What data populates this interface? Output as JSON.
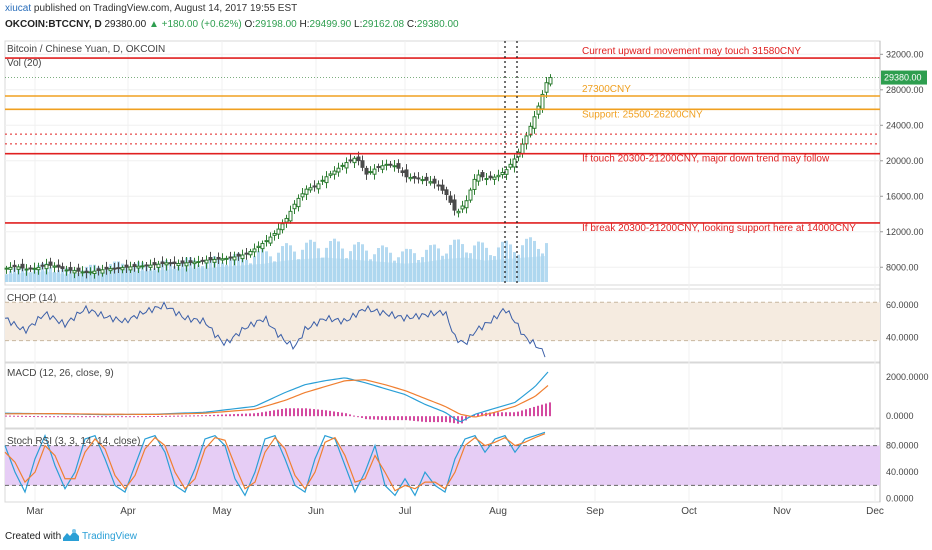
{
  "header": {
    "publisher": "xiucat",
    "published_text": "published on TradingView.com, August 14, 2017 19:55 EST",
    "symbol": "OKCOIN:BTCCNY, D",
    "last": "29380.00",
    "change": "▲ +180.00 (+0.62%)",
    "o_label": "O:",
    "o_value": "29198.00",
    "h_label": "H:",
    "h_value": "29499.90",
    "l_label": "L:",
    "l_value": "29162.08",
    "c_label": "C:",
    "c_value": "29380.00"
  },
  "colors": {
    "red": "#e02020",
    "orange": "#f0a020",
    "up_candle": "#2e7d32",
    "down_candle": "#4a4a4a",
    "volume": "#a8d4ee",
    "chop_line": "#3b5fa8",
    "chop_band": "#f5ebe0",
    "macd_line": "#2a9fd6",
    "signal_line": "#f07f30",
    "hist": "#d44aa0",
    "stoch_band": "#e6cdf5",
    "stoch_k": "#2a9fd6",
    "stoch_d": "#f07f30"
  },
  "footer": {
    "created_text": "Created with",
    "brand": "TradingView"
  },
  "chart_data": [
    {
      "type": "candlestick",
      "title": "Bitcoin / Chinese Yuan, D, OKCOIN",
      "subtitle": "Vol (20)",
      "x_labels": [
        "Mar",
        "Apr",
        "May",
        "Jun",
        "Jul",
        "Aug",
        "Sep",
        "Oct",
        "Nov",
        "Dec"
      ],
      "yticks": [
        8000,
        12000,
        16000,
        20000,
        24000,
        28000,
        32000
      ],
      "yticks_text": [
        "8000.00",
        "12000.00",
        "16000.00",
        "20000.00",
        "24000.00",
        "28000.00",
        "32000.00"
      ],
      "ylim": [
        6000,
        33500
      ],
      "last_price": 29380,
      "last_price_text": "29380.00",
      "close_series": [
        [
          0,
          7900
        ],
        [
          10,
          8100
        ],
        [
          20,
          7800
        ],
        [
          30,
          7900
        ],
        [
          40,
          8300
        ],
        [
          50,
          8100
        ],
        [
          60,
          7700
        ],
        [
          70,
          7600
        ],
        [
          80,
          7400
        ],
        [
          90,
          7600
        ],
        [
          100,
          7800
        ],
        [
          110,
          7900
        ],
        [
          120,
          8000
        ],
        [
          130,
          8100
        ],
        [
          140,
          8200
        ],
        [
          150,
          8300
        ],
        [
          160,
          8500
        ],
        [
          170,
          8400
        ],
        [
          180,
          8500
        ],
        [
          190,
          8600
        ],
        [
          200,
          8800
        ],
        [
          210,
          8900
        ],
        [
          220,
          9000
        ],
        [
          230,
          9200
        ],
        [
          240,
          9500
        ],
        [
          250,
          10200
        ],
        [
          260,
          11000
        ],
        [
          270,
          12000
        ],
        [
          280,
          13500
        ],
        [
          290,
          15500
        ],
        [
          300,
          16800
        ],
        [
          310,
          17200
        ],
        [
          320,
          18200
        ],
        [
          330,
          19000
        ],
        [
          340,
          19800
        ],
        [
          350,
          20400
        ],
        [
          360,
          18500
        ],
        [
          370,
          19200
        ],
        [
          380,
          19600
        ],
        [
          390,
          19400
        ],
        [
          400,
          18200
        ],
        [
          410,
          18000
        ],
        [
          420,
          17800
        ],
        [
          430,
          17400
        ],
        [
          440,
          16200
        ],
        [
          450,
          14000
        ],
        [
          460,
          15500
        ],
        [
          470,
          18500
        ],
        [
          480,
          18000
        ],
        [
          490,
          18200
        ],
        [
          500,
          19000
        ],
        [
          510,
          20500
        ],
        [
          520,
          22800
        ],
        [
          530,
          25500
        ],
        [
          540,
          28800
        ],
        [
          544,
          29380
        ]
      ],
      "volume": [
        [
          0,
          0.5
        ],
        [
          20,
          0.6
        ],
        [
          40,
          0.7
        ],
        [
          60,
          0.5
        ],
        [
          80,
          0.6
        ],
        [
          100,
          0.7
        ],
        [
          120,
          0.8
        ],
        [
          140,
          0.7
        ],
        [
          160,
          0.8
        ],
        [
          180,
          0.9
        ],
        [
          200,
          0.9
        ],
        [
          220,
          1.0
        ],
        [
          240,
          1.1
        ],
        [
          260,
          1.2
        ],
        [
          280,
          1.4
        ],
        [
          300,
          1.5
        ],
        [
          320,
          1.6
        ],
        [
          340,
          1.5
        ],
        [
          360,
          1.4
        ],
        [
          380,
          1.3
        ],
        [
          400,
          1.2
        ],
        [
          420,
          1.3
        ],
        [
          440,
          1.5
        ],
        [
          460,
          1.6
        ],
        [
          480,
          1.4
        ],
        [
          500,
          1.5
        ],
        [
          520,
          1.6
        ],
        [
          540,
          1.7
        ]
      ],
      "levels": [
        {
          "value": 31580,
          "style": "solid",
          "color_key": "red",
          "label": "Current upward movement may touch 31580CNY"
        },
        {
          "value": 27300,
          "style": "solid",
          "color_key": "orange",
          "label": "27300CNY"
        },
        {
          "value": 25800,
          "style": "solid",
          "color_key": "orange",
          "label": "Support: 25500-26200CNY"
        },
        {
          "value": 23000,
          "style": "dotted",
          "color_key": "red",
          "label": ""
        },
        {
          "value": 21900,
          "style": "dotted",
          "color_key": "red",
          "label": ""
        },
        {
          "value": 20800,
          "style": "solid",
          "color_key": "red",
          "label": "If touch 20300-21200CNY, major down trend may follow"
        },
        {
          "value": 13000,
          "style": "solid",
          "color_key": "red",
          "label": "If break 20300-21200CNY, looking support here at 14000CNY"
        }
      ],
      "vertical_markers": [
        500,
        512
      ]
    },
    {
      "type": "line",
      "title": "CHOP (14)",
      "yticks": [
        40,
        60
      ],
      "yticks_text": [
        "40.0000",
        "60.0000"
      ],
      "ylim": [
        25,
        70
      ],
      "band": [
        38.2,
        61.8
      ],
      "values": [
        [
          0,
          52
        ],
        [
          20,
          44
        ],
        [
          40,
          55
        ],
        [
          60,
          48
        ],
        [
          80,
          58
        ],
        [
          100,
          53
        ],
        [
          120,
          50
        ],
        [
          140,
          56
        ],
        [
          160,
          60
        ],
        [
          180,
          52
        ],
        [
          200,
          50
        ],
        [
          210,
          42
        ],
        [
          220,
          36
        ],
        [
          240,
          46
        ],
        [
          260,
          52
        ],
        [
          270,
          44
        ],
        [
          280,
          38
        ],
        [
          290,
          34
        ],
        [
          300,
          45
        ],
        [
          320,
          52
        ],
        [
          340,
          50
        ],
        [
          360,
          58
        ],
        [
          380,
          55
        ],
        [
          400,
          52
        ],
        [
          420,
          54
        ],
        [
          440,
          56
        ],
        [
          450,
          40
        ],
        [
          460,
          36
        ],
        [
          470,
          44
        ],
        [
          490,
          52
        ],
        [
          500,
          58
        ],
        [
          510,
          50
        ],
        [
          520,
          40
        ],
        [
          530,
          36
        ],
        [
          540,
          30
        ]
      ]
    },
    {
      "type": "line",
      "title": "MACD (12, 26, close, 9)",
      "yticks": [
        0,
        2000
      ],
      "yticks_text": [
        "0.0000",
        "2000.0000"
      ],
      "ylim": [
        -600,
        2700
      ],
      "macd": [
        [
          0,
          150
        ],
        [
          50,
          120
        ],
        [
          100,
          80
        ],
        [
          150,
          100
        ],
        [
          200,
          200
        ],
        [
          250,
          500
        ],
        [
          280,
          1200
        ],
        [
          300,
          1600
        ],
        [
          320,
          1800
        ],
        [
          340,
          1950
        ],
        [
          360,
          1700
        ],
        [
          380,
          1400
        ],
        [
          400,
          1100
        ],
        [
          420,
          600
        ],
        [
          440,
          200
        ],
        [
          455,
          -300
        ],
        [
          470,
          100
        ],
        [
          490,
          400
        ],
        [
          510,
          700
        ],
        [
          530,
          1500
        ],
        [
          544,
          2300
        ]
      ],
      "signal": [
        [
          0,
          120
        ],
        [
          50,
          130
        ],
        [
          100,
          100
        ],
        [
          150,
          90
        ],
        [
          200,
          150
        ],
        [
          250,
          350
        ],
        [
          280,
          800
        ],
        [
          300,
          1200
        ],
        [
          320,
          1500
        ],
        [
          340,
          1800
        ],
        [
          360,
          1850
        ],
        [
          380,
          1600
        ],
        [
          400,
          1300
        ],
        [
          420,
          900
        ],
        [
          440,
          500
        ],
        [
          455,
          100
        ],
        [
          470,
          -50
        ],
        [
          490,
          200
        ],
        [
          510,
          500
        ],
        [
          530,
          1000
        ],
        [
          544,
          1600
        ]
      ],
      "histogram_scale": 1
    },
    {
      "type": "line",
      "title": "Stoch RSI (3, 3, 14, 14, close)",
      "yticks": [
        0,
        40,
        80
      ],
      "yticks_text": [
        "0.0000",
        "40.0000",
        "80.0000"
      ],
      "ylim": [
        -5,
        105
      ],
      "band": [
        20,
        80
      ],
      "k": [
        [
          0,
          80
        ],
        [
          10,
          40
        ],
        [
          20,
          10
        ],
        [
          30,
          60
        ],
        [
          40,
          95
        ],
        [
          50,
          50
        ],
        [
          60,
          15
        ],
        [
          70,
          40
        ],
        [
          80,
          90
        ],
        [
          90,
          95
        ],
        [
          100,
          60
        ],
        [
          110,
          20
        ],
        [
          120,
          10
        ],
        [
          130,
          50
        ],
        [
          140,
          90
        ],
        [
          150,
          95
        ],
        [
          160,
          70
        ],
        [
          170,
          20
        ],
        [
          180,
          10
        ],
        [
          190,
          45
        ],
        [
          200,
          90
        ],
        [
          210,
          95
        ],
        [
          220,
          80
        ],
        [
          230,
          30
        ],
        [
          240,
          5
        ],
        [
          250,
          40
        ],
        [
          260,
          90
        ],
        [
          270,
          95
        ],
        [
          280,
          60
        ],
        [
          290,
          20
        ],
        [
          300,
          10
        ],
        [
          310,
          60
        ],
        [
          320,
          95
        ],
        [
          330,
          90
        ],
        [
          340,
          50
        ],
        [
          350,
          10
        ],
        [
          360,
          40
        ],
        [
          370,
          80
        ],
        [
          380,
          20
        ],
        [
          390,
          5
        ],
        [
          400,
          30
        ],
        [
          410,
          5
        ],
        [
          420,
          40
        ],
        [
          430,
          20
        ],
        [
          440,
          10
        ],
        [
          450,
          60
        ],
        [
          460,
          90
        ],
        [
          470,
          95
        ],
        [
          480,
          70
        ],
        [
          490,
          90
        ],
        [
          500,
          95
        ],
        [
          510,
          70
        ],
        [
          520,
          90
        ],
        [
          530,
          95
        ],
        [
          540,
          100
        ]
      ],
      "d": [
        [
          0,
          70
        ],
        [
          10,
          55
        ],
        [
          20,
          25
        ],
        [
          30,
          40
        ],
        [
          40,
          80
        ],
        [
          50,
          65
        ],
        [
          60,
          30
        ],
        [
          70,
          30
        ],
        [
          80,
          70
        ],
        [
          90,
          90
        ],
        [
          100,
          75
        ],
        [
          110,
          35
        ],
        [
          120,
          15
        ],
        [
          130,
          35
        ],
        [
          140,
          75
        ],
        [
          150,
          92
        ],
        [
          160,
          80
        ],
        [
          170,
          40
        ],
        [
          180,
          15
        ],
        [
          190,
          30
        ],
        [
          200,
          75
        ],
        [
          210,
          92
        ],
        [
          220,
          88
        ],
        [
          230,
          50
        ],
        [
          240,
          15
        ],
        [
          250,
          25
        ],
        [
          260,
          70
        ],
        [
          270,
          92
        ],
        [
          280,
          75
        ],
        [
          290,
          35
        ],
        [
          300,
          15
        ],
        [
          310,
          40
        ],
        [
          320,
          85
        ],
        [
          330,
          92
        ],
        [
          340,
          65
        ],
        [
          350,
          25
        ],
        [
          360,
          30
        ],
        [
          370,
          65
        ],
        [
          380,
          40
        ],
        [
          390,
          12
        ],
        [
          400,
          20
        ],
        [
          410,
          15
        ],
        [
          420,
          25
        ],
        [
          430,
          25
        ],
        [
          440,
          15
        ],
        [
          450,
          40
        ],
        [
          460,
          80
        ],
        [
          470,
          92
        ],
        [
          480,
          80
        ],
        [
          490,
          85
        ],
        [
          500,
          92
        ],
        [
          510,
          80
        ],
        [
          520,
          85
        ],
        [
          530,
          92
        ],
        [
          540,
          98
        ]
      ]
    }
  ]
}
